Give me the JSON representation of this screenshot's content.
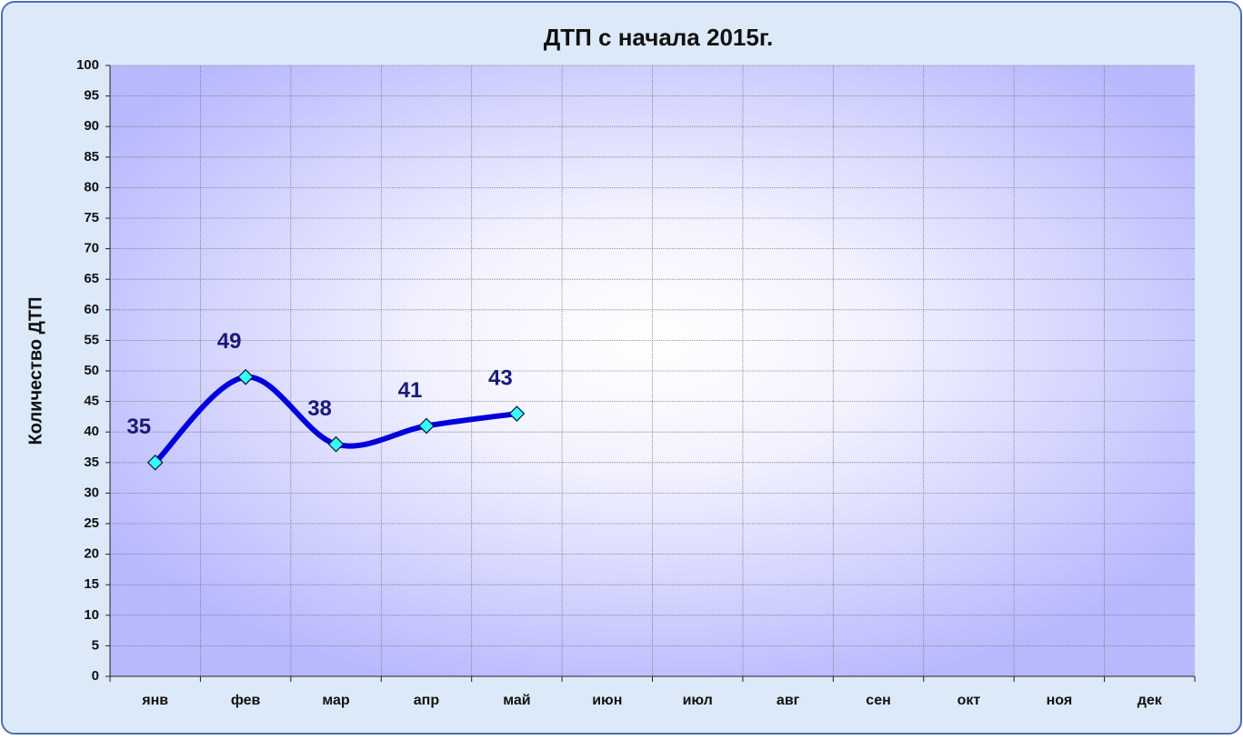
{
  "chart_data": {
    "type": "line",
    "title": "ДТП с начала 2015г.",
    "y_label": "Количество ДТП",
    "categories": [
      "янв",
      "фев",
      "мар",
      "апр",
      "май",
      "июн",
      "июл",
      "авг",
      "сен",
      "окт",
      "ноя",
      "дек"
    ],
    "values": [
      35,
      49,
      38,
      41,
      43,
      null,
      null,
      null,
      null,
      null,
      null,
      null
    ],
    "color": "#0000dd",
    "marker_color": "#33ffff",
    "smooth": true,
    "data_labels": true,
    "ylim": [
      0,
      100
    ],
    "yticks": [
      0,
      5,
      10,
      15,
      20,
      25,
      30,
      35,
      40,
      45,
      50,
      55,
      60,
      65,
      70,
      75,
      80,
      85,
      90,
      95,
      100
    ],
    "grid": true
  }
}
